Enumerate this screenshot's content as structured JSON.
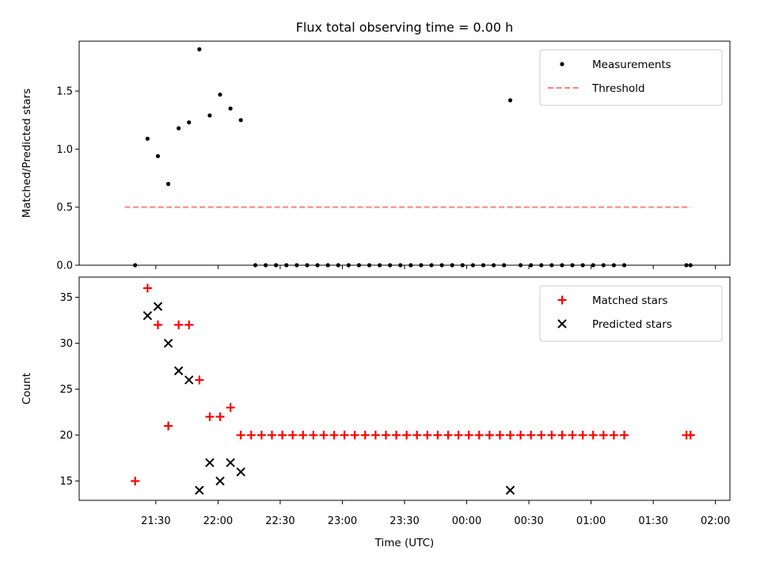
{
  "chart_data": [
    {
      "type": "scatter",
      "title": "Flux total observing time = 0.00 h",
      "ylabel": "Matched/Predicted stars",
      "ylim": [
        0,
        1.93
      ],
      "yticks": [
        "0.0",
        "0.5",
        "1.0",
        "1.5"
      ],
      "x_tick_labels": [],
      "threshold": {
        "name": "Threshold",
        "value": 0.5,
        "x": [
          "21:15",
          "1:48"
        ],
        "color": "#ff8080"
      },
      "series": [
        {
          "name": "Measurements",
          "color": "#000000",
          "points": [
            [
              "21:20",
              0.0
            ],
            [
              "21:26",
              1.09
            ],
            [
              "21:31",
              0.94
            ],
            [
              "21:36",
              0.7
            ],
            [
              "21:41",
              1.18
            ],
            [
              "21:46",
              1.23
            ],
            [
              "21:51",
              1.86
            ],
            [
              "21:56",
              1.29
            ],
            [
              "22:01",
              1.47
            ],
            [
              "22:06",
              1.35
            ],
            [
              "22:11",
              1.25
            ],
            [
              "22:18",
              0.0
            ],
            [
              "22:23",
              0.0
            ],
            [
              "22:28",
              0.0
            ],
            [
              "22:33",
              0.0
            ],
            [
              "22:38",
              0.0
            ],
            [
              "22:43",
              0.0
            ],
            [
              "22:48",
              0.0
            ],
            [
              "22:53",
              0.0
            ],
            [
              "22:58",
              0.0
            ],
            [
              "23:03",
              0.0
            ],
            [
              "23:08",
              0.0
            ],
            [
              "23:13",
              0.0
            ],
            [
              "23:18",
              0.0
            ],
            [
              "23:23",
              0.0
            ],
            [
              "23:28",
              0.0
            ],
            [
              "23:33",
              0.0
            ],
            [
              "23:38",
              0.0
            ],
            [
              "23:43",
              0.0
            ],
            [
              "23:48",
              0.0
            ],
            [
              "23:53",
              0.0
            ],
            [
              "23:58",
              0.0
            ],
            [
              "0:03",
              0.0
            ],
            [
              "0:08",
              0.0
            ],
            [
              "0:13",
              0.0
            ],
            [
              "0:18",
              0.0
            ],
            [
              "0:21",
              1.42
            ],
            [
              "0:26",
              0.0
            ],
            [
              "0:31",
              0.0
            ],
            [
              "0:36",
              0.0
            ],
            [
              "0:41",
              0.0
            ],
            [
              "0:46",
              0.0
            ],
            [
              "0:51",
              0.0
            ],
            [
              "0:56",
              0.0
            ],
            [
              "1:01",
              0.0
            ],
            [
              "1:06",
              0.0
            ],
            [
              "1:11",
              0.0
            ],
            [
              "1:16",
              0.0
            ],
            [
              "1:46",
              0.0
            ],
            [
              "1:48",
              0.0
            ]
          ]
        }
      ],
      "legend_loc": "upper right"
    },
    {
      "type": "scatter",
      "xlabel": "Time (UTC)",
      "ylabel": "Count",
      "ylim": [
        12.9,
        37.2
      ],
      "yticks": [
        "15",
        "20",
        "25",
        "30",
        "35"
      ],
      "x_tick_labels": [
        "21:30",
        "22:00",
        "22:30",
        "23:00",
        "23:30",
        "00:00",
        "00:30",
        "01:00",
        "01:30",
        "02:00"
      ],
      "series": [
        {
          "name": "Matched stars",
          "marker": "plus",
          "color": "#ff0000",
          "points": [
            [
              "21:20",
              15
            ],
            [
              "21:26",
              36
            ],
            [
              "21:31",
              32
            ],
            [
              "21:36",
              21
            ],
            [
              "21:41",
              32
            ],
            [
              "21:46",
              32
            ],
            [
              "21:51",
              26
            ],
            [
              "21:56",
              22
            ],
            [
              "22:01",
              22
            ],
            [
              "22:06",
              23
            ],
            [
              "22:11",
              20
            ],
            [
              "22:16",
              20
            ],
            [
              "22:21",
              20
            ],
            [
              "22:26",
              20
            ],
            [
              "22:31",
              20
            ],
            [
              "22:36",
              20
            ],
            [
              "22:41",
              20
            ],
            [
              "22:46",
              20
            ],
            [
              "22:51",
              20
            ],
            [
              "22:56",
              20
            ],
            [
              "23:01",
              20
            ],
            [
              "23:06",
              20
            ],
            [
              "23:11",
              20
            ],
            [
              "23:16",
              20
            ],
            [
              "23:21",
              20
            ],
            [
              "23:26",
              20
            ],
            [
              "23:31",
              20
            ],
            [
              "23:36",
              20
            ],
            [
              "23:41",
              20
            ],
            [
              "23:46",
              20
            ],
            [
              "23:51",
              20
            ],
            [
              "23:56",
              20
            ],
            [
              "0:01",
              20
            ],
            [
              "0:06",
              20
            ],
            [
              "0:11",
              20
            ],
            [
              "0:16",
              20
            ],
            [
              "0:21",
              20
            ],
            [
              "0:26",
              20
            ],
            [
              "0:31",
              20
            ],
            [
              "0:36",
              20
            ],
            [
              "0:41",
              20
            ],
            [
              "0:46",
              20
            ],
            [
              "0:51",
              20
            ],
            [
              "0:56",
              20
            ],
            [
              "1:01",
              20
            ],
            [
              "1:06",
              20
            ],
            [
              "1:11",
              20
            ],
            [
              "1:16",
              20
            ],
            [
              "1:46",
              20
            ],
            [
              "1:48",
              20
            ]
          ]
        },
        {
          "name": "Predicted stars",
          "marker": "x",
          "color": "#000000",
          "points": [
            [
              "21:26",
              33
            ],
            [
              "21:31",
              34
            ],
            [
              "21:36",
              30
            ],
            [
              "21:41",
              27
            ],
            [
              "21:46",
              26
            ],
            [
              "21:51",
              14
            ],
            [
              "21:56",
              17
            ],
            [
              "22:01",
              15
            ],
            [
              "22:06",
              17
            ],
            [
              "22:11",
              16
            ],
            [
              "0:21",
              14
            ]
          ]
        }
      ],
      "legend_loc": "upper right"
    }
  ]
}
